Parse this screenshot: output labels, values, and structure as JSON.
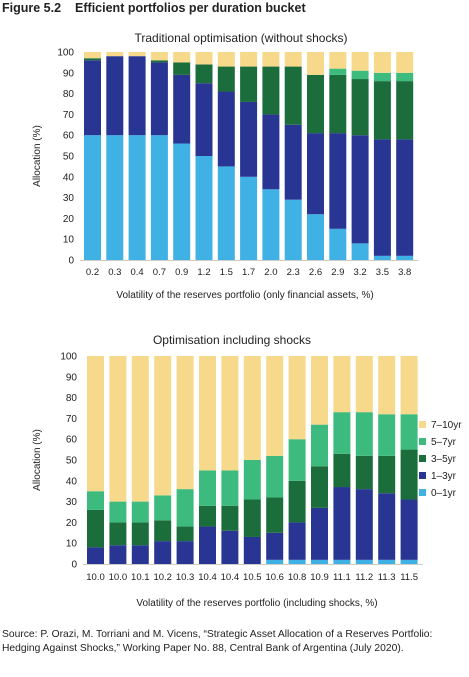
{
  "figure": {
    "number": "Figure 5.2",
    "title": "Efficient portfolios per duration bucket"
  },
  "source": "Source: P. Orazi, M. Torriani and M. Vicens, “Strategic Asset Allocation of a Reserves Portfolio: Hedging Against Shocks,” Working Paper No. 88, Central Bank of Argentina (July 2020).",
  "colors": {
    "0-1yr": "#3fb1e5",
    "1-3yr": "#283593",
    "3-5yr": "#1b6e3c",
    "5-7yr": "#3dba7d",
    "7-10yr": "#f7d98b"
  },
  "legend": {
    "placement": "right",
    "items": [
      {
        "key": "7-10yr",
        "label": "7–10yr"
      },
      {
        "key": "5-7yr",
        "label": "5–7yr"
      },
      {
        "key": "3-5yr",
        "label": "3–5yr"
      },
      {
        "key": "1-3yr",
        "label": "1–3yr"
      },
      {
        "key": "0-1yr",
        "label": "0–1yr"
      }
    ]
  },
  "chart_data": [
    {
      "type": "bar",
      "stacked": true,
      "title": "Traditional optimisation (without shocks)",
      "xlabel": "Volatility of the reserves portfolio (only financial assets, %)",
      "ylabel": "Allocation (%)",
      "ylim": [
        0,
        100
      ],
      "yticks": [
        0,
        10,
        20,
        30,
        40,
        50,
        60,
        70,
        80,
        90,
        100
      ],
      "categories": [
        "0.2",
        "0.3",
        "0.4",
        "0.7",
        "0.9",
        "1.2",
        "1.5",
        "1.7",
        "2.0",
        "2.3",
        "2.6",
        "2.9",
        "3.2",
        "3.5",
        "3.8"
      ],
      "series": [
        {
          "key": "0-1yr",
          "values": [
            60,
            60,
            60,
            60,
            56,
            50,
            45,
            40,
            34,
            29,
            22,
            15,
            8,
            2,
            2
          ]
        },
        {
          "key": "1-3yr",
          "values": [
            36,
            38,
            38,
            35,
            33,
            35,
            36,
            36,
            36,
            36,
            39,
            46,
            52,
            56,
            56
          ]
        },
        {
          "key": "3-5yr",
          "values": [
            1,
            0,
            0,
            1,
            6,
            9,
            12,
            17,
            23,
            28,
            28,
            28,
            27,
            28,
            28
          ]
        },
        {
          "key": "5-7yr",
          "values": [
            0,
            0,
            0,
            0,
            0,
            0,
            0,
            0,
            0,
            0,
            0,
            3,
            4,
            4,
            4
          ]
        },
        {
          "key": "7-10yr",
          "values": [
            3,
            2,
            2,
            4,
            5,
            6,
            7,
            7,
            7,
            7,
            11,
            8,
            9,
            10,
            10
          ]
        }
      ],
      "grid": false
    },
    {
      "type": "bar",
      "stacked": true,
      "title": "Optimisation including shocks",
      "xlabel": "Volatility of the reserves portfolio (including shocks, %)",
      "ylabel": "Allocation (%)",
      "ylim": [
        0,
        100
      ],
      "yticks": [
        0,
        10,
        20,
        30,
        40,
        50,
        60,
        70,
        80,
        90,
        100
      ],
      "categories": [
        "10.0",
        "10.0",
        "10.1",
        "10.2",
        "10.3",
        "10.4",
        "10.4",
        "10.5",
        "10.6",
        "10.8",
        "10.9",
        "11.1",
        "11.2",
        "11.3",
        "11.5"
      ],
      "series": [
        {
          "key": "0-1yr",
          "values": [
            0,
            0,
            0,
            0,
            0,
            0,
            0,
            0,
            2,
            2,
            2,
            2,
            2,
            2,
            2
          ]
        },
        {
          "key": "1-3yr",
          "values": [
            8,
            9,
            9,
            11,
            11,
            18,
            16,
            13,
            13,
            18,
            25,
            35,
            34,
            32,
            29
          ]
        },
        {
          "key": "3-5yr",
          "values": [
            18,
            11,
            11,
            10,
            7,
            10,
            12,
            18,
            17,
            20,
            20,
            16,
            16,
            18,
            24
          ]
        },
        {
          "key": "5-7yr",
          "values": [
            9,
            10,
            10,
            12,
            18,
            17,
            17,
            19,
            20,
            20,
            20,
            20,
            21,
            20,
            17
          ]
        },
        {
          "key": "7-10yr",
          "values": [
            65,
            70,
            70,
            67,
            64,
            55,
            55,
            50,
            48,
            40,
            33,
            27,
            27,
            28,
            28
          ]
        }
      ],
      "grid": false
    }
  ]
}
